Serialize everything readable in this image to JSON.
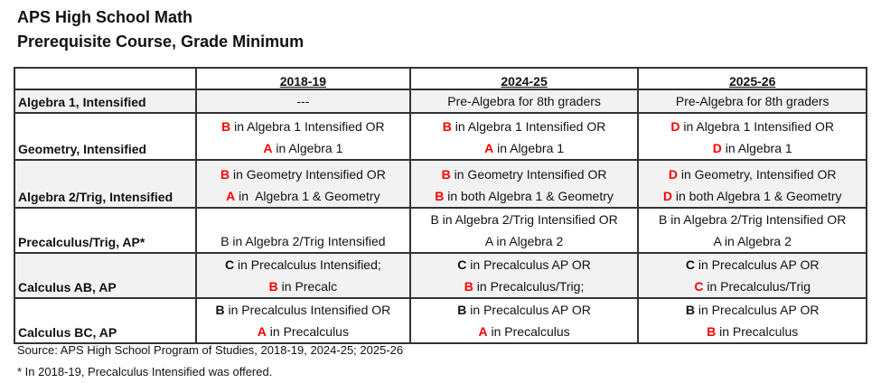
{
  "title_line1": "APS High School Math",
  "title_line2": "Prerequisite Course, Grade Minimum",
  "columns": [
    "",
    "2018-19",
    "2024-25",
    "2025-26"
  ],
  "colors": {
    "highlight_grade": "#ff0000",
    "gray_row": "#f2f2f2"
  },
  "rows": [
    {
      "course": "Algebra 1, Intensified",
      "gray": true,
      "cells": [
        [
          {
            "grade": "",
            "style": "plain",
            "text": "---"
          }
        ],
        [
          {
            "grade": "",
            "style": "plain",
            "text": "Pre-Algebra for 8th graders"
          }
        ],
        [
          {
            "grade": "",
            "style": "plain",
            "text": "Pre-Algebra for 8th graders"
          }
        ]
      ]
    },
    {
      "course": "Geometry, Intensified",
      "gray": false,
      "cells": [
        [
          {
            "grade": "B",
            "style": "red",
            "text": " in Algebra 1 Intensified OR"
          },
          {
            "grade": "A",
            "style": "red",
            "text": " in Algebra 1"
          }
        ],
        [
          {
            "grade": "B",
            "style": "red",
            "text": " in Algebra 1 Intensified OR"
          },
          {
            "grade": "A",
            "style": "red",
            "text": " in Algebra 1"
          }
        ],
        [
          {
            "grade": "D",
            "style": "red",
            "text": " in Algebra 1 Intensified OR"
          },
          {
            "grade": "D",
            "style": "red",
            "text": " in Algebra 1"
          }
        ]
      ]
    },
    {
      "course": "Algebra 2/Trig, Intensified",
      "gray": true,
      "cells": [
        [
          {
            "grade": "B",
            "style": "red",
            "text": " in Geometry Intensified OR"
          },
          {
            "grade": "A",
            "style": "red",
            "text": " in  Algebra 1 & Geometry"
          }
        ],
        [
          {
            "grade": "B",
            "style": "red",
            "text": " in Geometry Intensified OR"
          },
          {
            "grade": "B",
            "style": "red",
            "text": " in both Algebra 1 & Geometry"
          }
        ],
        [
          {
            "grade": "D",
            "style": "red",
            "text": " in Geometry, Intensified OR"
          },
          {
            "grade": "D",
            "style": "red",
            "text": " in both Algebra 1 & Geometry"
          }
        ]
      ]
    },
    {
      "course": "Precalculus/Trig, AP*",
      "gray": false,
      "cells": [
        [
          {
            "grade": "B",
            "style": "plain",
            "text": " in Algebra 2/Trig Intensified"
          }
        ],
        [
          {
            "grade": "B",
            "style": "plain",
            "text": " in Algebra 2/Trig Intensified OR"
          },
          {
            "grade": "A",
            "style": "plain",
            "text": " in Algebra 2"
          }
        ],
        [
          {
            "grade": "B",
            "style": "plain",
            "text": " in Algebra 2/Trig Intensified OR"
          },
          {
            "grade": "A",
            "style": "plain",
            "text": " in Algebra 2"
          }
        ]
      ]
    },
    {
      "course": "Calculus AB, AP",
      "gray": true,
      "cells": [
        [
          {
            "grade": "C",
            "style": "bold",
            "text": " in Precalculus Intensified;"
          },
          {
            "grade": "B",
            "style": "red",
            "text": " in Precalc"
          }
        ],
        [
          {
            "grade": "C",
            "style": "bold",
            "text": " in Precalculus AP OR"
          },
          {
            "grade": "B",
            "style": "red",
            "text": " in Precalculus/Trig;"
          }
        ],
        [
          {
            "grade": "C",
            "style": "bold",
            "text": " in Precalculus AP OR"
          },
          {
            "grade": "C",
            "style": "red",
            "text": " in Precalculus/Trig"
          }
        ]
      ]
    },
    {
      "course": "Calculus BC, AP",
      "gray": false,
      "cells": [
        [
          {
            "grade": "B",
            "style": "bold",
            "text": " in Precalculus Intensified OR"
          },
          {
            "grade": "A",
            "style": "red",
            "text": " in Precalculus"
          }
        ],
        [
          {
            "grade": "B",
            "style": "bold",
            "text": " in Precalculus AP OR"
          },
          {
            "grade": "A",
            "style": "red",
            "text": " in Precalculus"
          }
        ],
        [
          {
            "grade": "B",
            "style": "bold",
            "text": " in Precalculus AP OR"
          },
          {
            "grade": "B",
            "style": "red",
            "text": " in Precalculus"
          }
        ]
      ]
    }
  ],
  "source": "Source: APS High School Program of Studies, 2018-19, 2024-25; 2025-26",
  "footnote": "* In 2018-19, Precalculus Intensified was offered."
}
